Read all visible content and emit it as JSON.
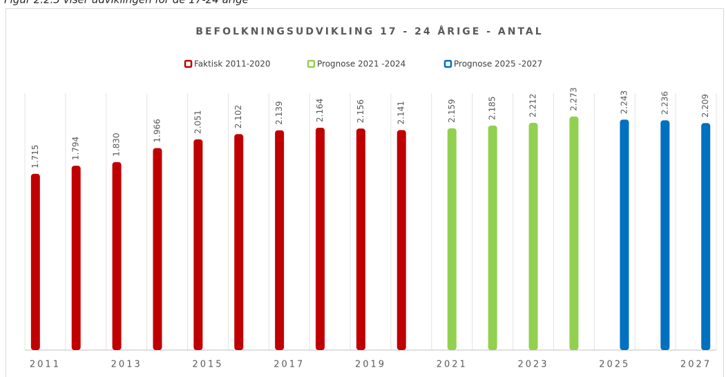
{
  "caption": "Figur 2.2.3 viser udviklingen for de 17-24 årige",
  "chart_data": {
    "type": "bar",
    "title": "BEFOLKNINGSUDVIKLING 17 - 24 ÅRIGE - ANTAL",
    "categories": [
      "2011",
      null,
      "2013",
      null,
      "2015",
      null,
      "2017",
      null,
      "2019",
      null,
      "2021",
      null,
      "2023",
      null,
      "2025",
      null,
      "2027"
    ],
    "series": [
      {
        "name": "Faktisk 2011-2020",
        "color": "#c00000",
        "values": [
          1715,
          1794,
          1830,
          1966,
          2051,
          2102,
          2139,
          2164,
          2156,
          2141,
          null,
          null,
          null,
          null,
          null,
          null,
          null
        ],
        "value_labels": [
          "1.715",
          "1.794",
          "1.830",
          "1.966",
          "2.051",
          "2.102",
          "2.139",
          "2.164",
          "2.156",
          "2.141",
          null,
          null,
          null,
          null,
          null,
          null,
          null
        ]
      },
      {
        "name": "Prognose 2021 -2024",
        "color": "#92d050",
        "values": [
          null,
          null,
          null,
          null,
          null,
          null,
          null,
          null,
          null,
          null,
          2159,
          2185,
          2212,
          2273,
          null,
          null,
          null
        ],
        "value_labels": [
          null,
          null,
          null,
          null,
          null,
          null,
          null,
          null,
          null,
          null,
          "2.159",
          "2.185",
          "2.212",
          "2.273",
          null,
          null,
          null
        ]
      },
      {
        "name": "Prognose 2025 -2027",
        "color": "#0070c0",
        "values": [
          null,
          null,
          null,
          null,
          null,
          null,
          null,
          null,
          null,
          null,
          null,
          null,
          null,
          null,
          2243,
          2236,
          2209
        ],
        "value_labels": [
          null,
          null,
          null,
          null,
          null,
          null,
          null,
          null,
          null,
          null,
          null,
          null,
          null,
          null,
          "2.243",
          "2.236",
          "2.209"
        ]
      }
    ],
    "ylim": [
      0,
      2500
    ],
    "legend": "top"
  }
}
